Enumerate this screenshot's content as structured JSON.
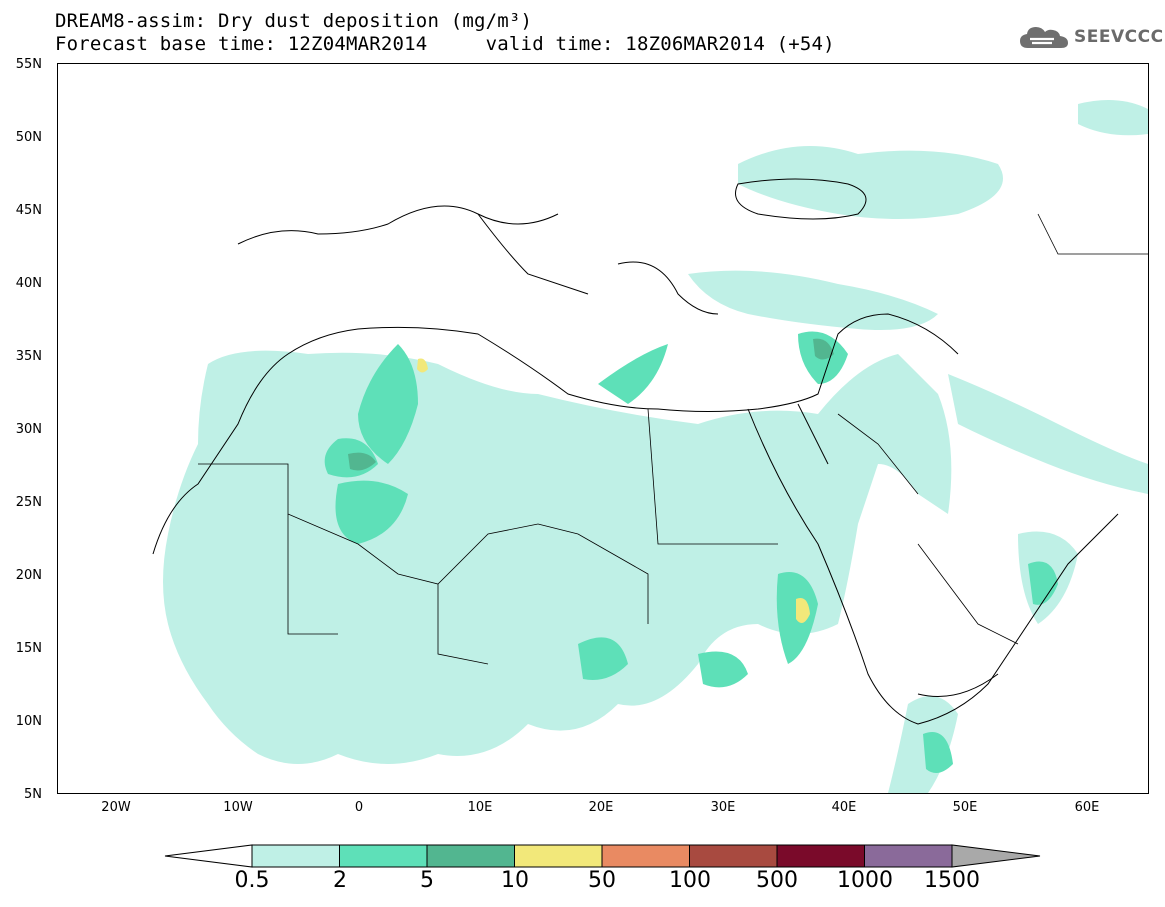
{
  "header": {
    "title_line1": "DREAM8-assim: Dry dust deposition (mg/m³)",
    "title_line2": "Forecast base time: 12Z04MAR2014     valid time: 18Z06MAR2014 (+54)",
    "logo_text": "SEEVCCC"
  },
  "map": {
    "lat_labels": [
      "55N",
      "50N",
      "45N",
      "40N",
      "35N",
      "30N",
      "25N",
      "20N",
      "15N",
      "10N",
      "5N"
    ],
    "lon_labels": [
      "20W",
      "10W",
      "0",
      "10E",
      "20E",
      "30E",
      "40E",
      "50E",
      "60E"
    ],
    "field": "Dry dust deposition",
    "units": "mg/m³"
  },
  "colorbar": {
    "labels": [
      "0.5",
      "2",
      "5",
      "10",
      "50",
      "100",
      "500",
      "1000",
      "1500"
    ],
    "colors": [
      "#bff0e6",
      "#5ee0b8",
      "#52b690",
      "#f2e87a",
      "#e98a62",
      "#a84a40",
      "#7a0a2a",
      "#8a6a9a"
    ],
    "under_color": "#ffffff",
    "over_color": "#a9a9a9"
  }
}
